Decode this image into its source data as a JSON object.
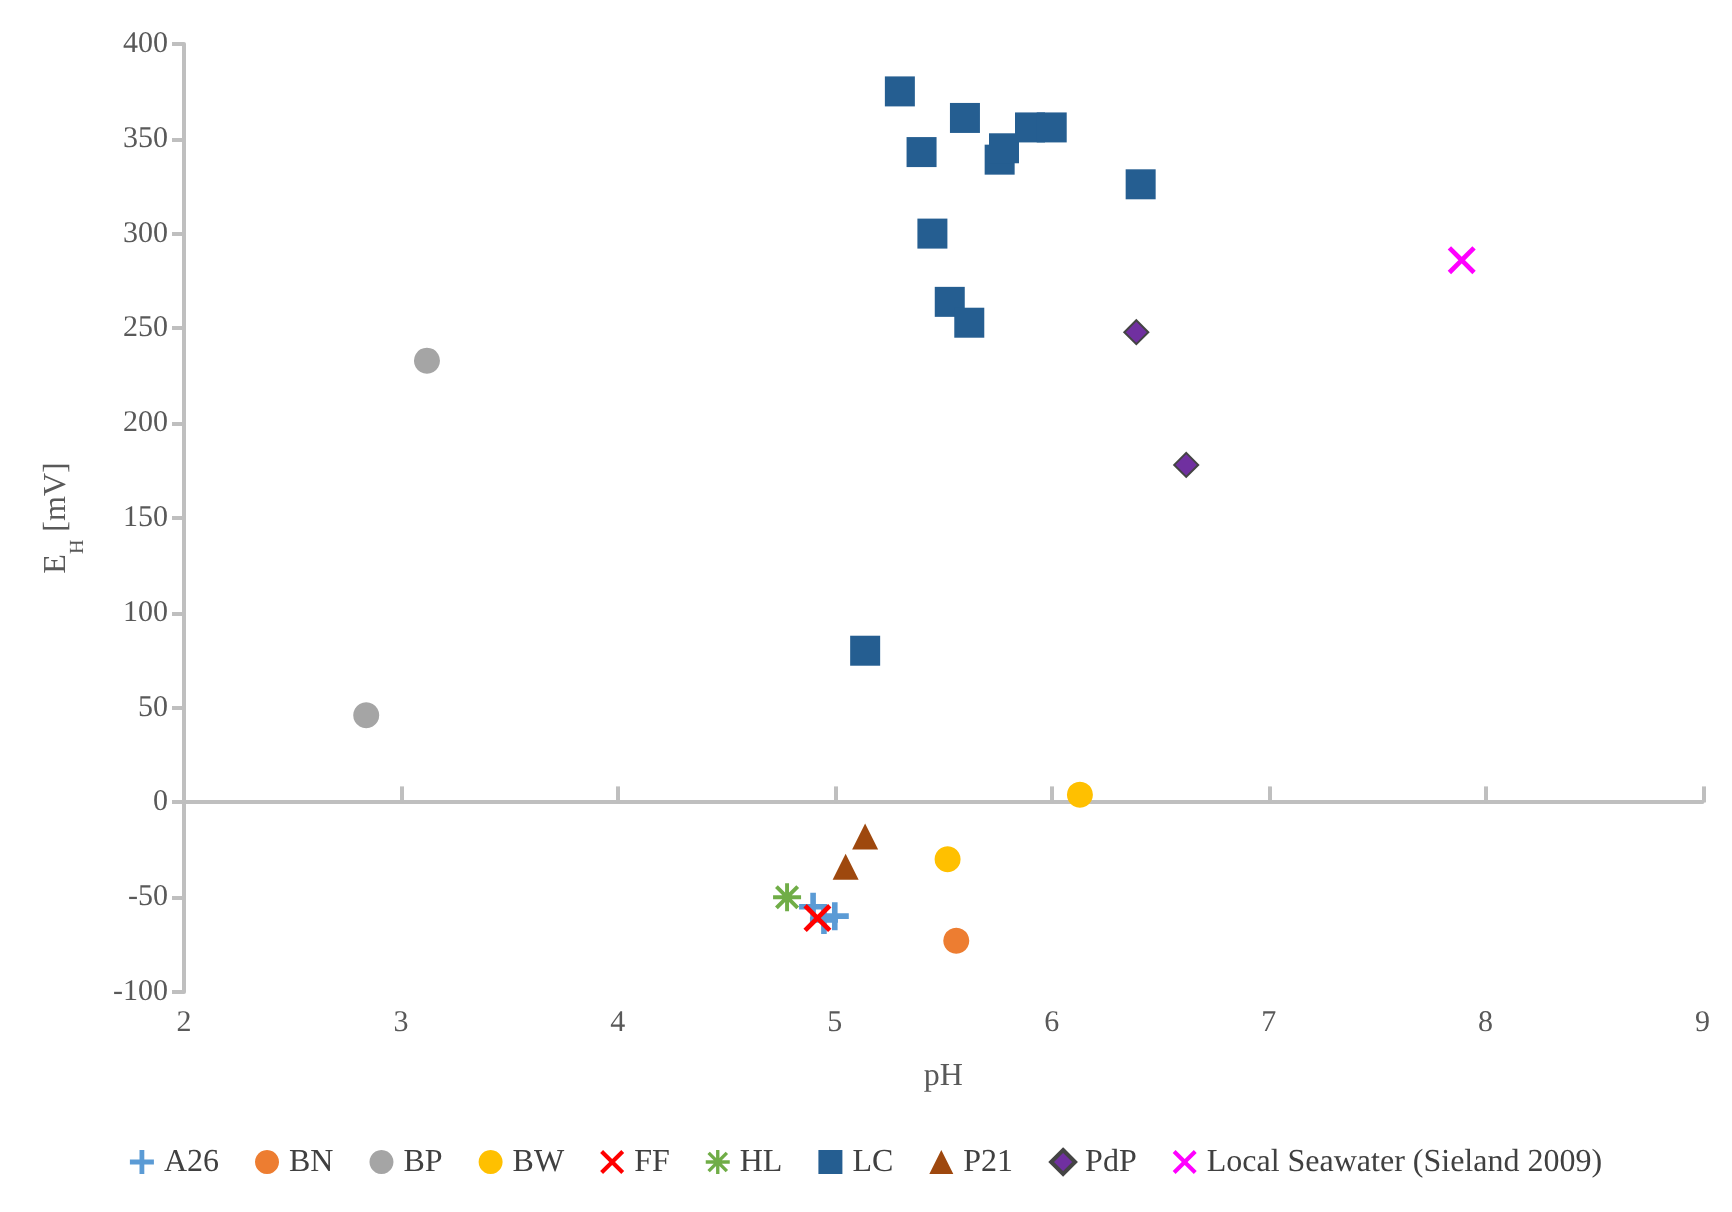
{
  "chart_data": {
    "type": "scatter",
    "xlabel": "pH",
    "ylabel": "E$_{H}$ [mV]",
    "xlim": [
      2,
      9
    ],
    "xticks": [
      2,
      3,
      4,
      5,
      6,
      7,
      8,
      9
    ],
    "ylim": [
      -100,
      400
    ],
    "yticks": [
      -100,
      -50,
      0,
      50,
      100,
      150,
      200,
      250,
      300,
      350,
      400
    ],
    "legend": "bottom",
    "series": [
      {
        "name": "A26",
        "color": "#5b9bd5",
        "marker": "plus",
        "x": [
          4.9,
          4.95,
          5.0
        ],
        "values": [
          -55,
          -62,
          -60
        ]
      },
      {
        "name": "BN",
        "color": "#ed7d31",
        "marker": "circle",
        "x": [
          5.56
        ],
        "values": [
          -73
        ]
      },
      {
        "name": "BP",
        "color": "#a5a5a5",
        "marker": "circle",
        "x": [
          2.84,
          3.12
        ],
        "values": [
          46,
          233
        ]
      },
      {
        "name": "BW",
        "color": "#ffc000",
        "marker": "circle",
        "x": [
          5.52,
          6.13
        ],
        "values": [
          -30,
          4
        ]
      },
      {
        "name": "FF",
        "color": "#ff0000",
        "marker": "x",
        "x": [
          4.92
        ],
        "values": [
          -61
        ]
      },
      {
        "name": "HL",
        "color": "#70ad47",
        "marker": "asterisk",
        "x": [
          4.78
        ],
        "values": [
          -50
        ]
      },
      {
        "name": "LC",
        "color": "#255e91",
        "marker": "square",
        "x": [
          5.3,
          5.4,
          5.6,
          5.45,
          5.53,
          5.62,
          5.76,
          5.78,
          5.9,
          6.0,
          6.41,
          5.14
        ],
        "values": [
          375,
          343,
          361,
          300,
          264,
          253,
          339,
          345,
          356,
          356,
          326,
          80
        ]
      },
      {
        "name": "P21",
        "color": "#9e480e",
        "marker": "triangle",
        "x": [
          5.05,
          5.14
        ],
        "values": [
          -34,
          -18
        ]
      },
      {
        "name": "PdP",
        "color": "#7030a0",
        "marker": "diamond",
        "x": [
          6.39,
          6.62
        ],
        "values": [
          248,
          178
        ]
      },
      {
        "name": "Local Seawater (Sieland 2009)",
        "color": "#ff00ff",
        "marker": "x",
        "x": [
          7.89
        ],
        "values": [
          286
        ]
      }
    ]
  }
}
